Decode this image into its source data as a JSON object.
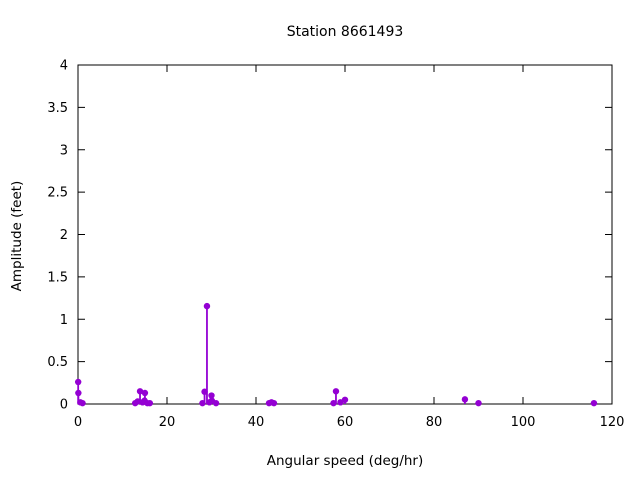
{
  "title": "Station 8661493",
  "chart_data": {
    "type": "scatter",
    "style": "impulses+points",
    "title": "Station 8661493",
    "xlabel": "Angular speed (deg/hr)",
    "ylabel": "Amplitude (feet)",
    "xlim": [
      0,
      120
    ],
    "ylim": [
      0,
      4
    ],
    "xticks": [
      0,
      20,
      40,
      60,
      80,
      100,
      120
    ],
    "yticks": [
      0,
      0.5,
      1,
      1.5,
      2,
      2.5,
      3,
      3.5,
      4
    ],
    "grid": false,
    "legend": "none",
    "point_color": "#9400d3",
    "axis_color": "#000000",
    "background_color": "#ffffff",
    "points": [
      {
        "x": 0.04,
        "y": 0.26
      },
      {
        "x": 0.08,
        "y": 0.13
      },
      {
        "x": 0.54,
        "y": 0.02
      },
      {
        "x": 1.02,
        "y": 0.01
      },
      {
        "x": 12.85,
        "y": 0.01
      },
      {
        "x": 13.4,
        "y": 0.03
      },
      {
        "x": 13.94,
        "y": 0.15
      },
      {
        "x": 14.5,
        "y": 0.02
      },
      {
        "x": 14.96,
        "y": 0.04
      },
      {
        "x": 15.04,
        "y": 0.13
      },
      {
        "x": 15.59,
        "y": 0.01
      },
      {
        "x": 16.14,
        "y": 0.01
      },
      {
        "x": 27.97,
        "y": 0.01
      },
      {
        "x": 28.44,
        "y": 0.145
      },
      {
        "x": 28.98,
        "y": 1.155
      },
      {
        "x": 29.53,
        "y": 0.02
      },
      {
        "x": 30.0,
        "y": 0.1
      },
      {
        "x": 30.08,
        "y": 0.04
      },
      {
        "x": 31.02,
        "y": 0.01
      },
      {
        "x": 42.93,
        "y": 0.01
      },
      {
        "x": 43.48,
        "y": 0.02
      },
      {
        "x": 44.03,
        "y": 0.01
      },
      {
        "x": 57.42,
        "y": 0.01
      },
      {
        "x": 57.97,
        "y": 0.15
      },
      {
        "x": 58.98,
        "y": 0.02
      },
      {
        "x": 60.0,
        "y": 0.05
      },
      {
        "x": 86.95,
        "y": 0.055
      },
      {
        "x": 90.0,
        "y": 0.01
      },
      {
        "x": 115.94,
        "y": 0.01
      }
    ]
  }
}
